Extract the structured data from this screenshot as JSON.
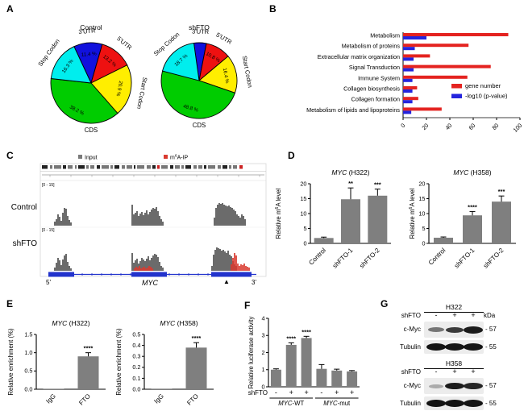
{
  "figure": {
    "bg": "#ffffff"
  },
  "panel_labels": {
    "A": "A",
    "B": "B",
    "C": "C",
    "D": "D",
    "E": "E",
    "F": "F",
    "G": "G"
  },
  "colors": {
    "bar_gray": "#7f7f7f",
    "red": "#e42320",
    "blue": "#2424dd",
    "track_gray": "#6b6b6b",
    "track_red": "#d93a2f",
    "gene_blue": "#2233cc"
  },
  "chart_data": [
    {
      "id": "pie-control",
      "type": "pie",
      "title": "Control",
      "start_angle": -25,
      "slices": [
        {
          "label": "3'UTR",
          "pct": 11.4,
          "color": "#1111dd"
        },
        {
          "label": "5'UTR",
          "pct": 13.2,
          "color": "#ee1111"
        },
        {
          "label": "Start Codon",
          "pct": 20.9,
          "color": "#ffee00"
        },
        {
          "label": "CDS",
          "pct": 38.2,
          "color": "#00cc00"
        },
        {
          "label": "Stop Codon",
          "pct": 16.3,
          "color": "#00eeee"
        }
      ]
    },
    {
      "id": "pie-shfto",
      "type": "pie",
      "title": "shFTO",
      "start_angle": -8,
      "slices": [
        {
          "label": "3'UTR",
          "pct": 5.3,
          "color": "#1111dd"
        },
        {
          "label": "5'UTR",
          "pct": 10.8,
          "color": "#ee1111"
        },
        {
          "label": "Start Codon",
          "pct": 16.4,
          "color": "#ffee00"
        },
        {
          "label": "CDS",
          "pct": 48.8,
          "color": "#00cc00"
        },
        {
          "label": "Stop Codon",
          "pct": 18.7,
          "color": "#00eeee"
        }
      ]
    },
    {
      "id": "pathway-bars",
      "type": "bar",
      "orientation": "horizontal",
      "categories": [
        "Metabolism",
        "Metabolism of proteins",
        "Extracellular matrix organization",
        "Signal Transduction",
        "Immune System",
        "Collagen biosynthesis",
        "Collagen formation",
        "Metabolism of lipids and lipoproteins"
      ],
      "series": [
        {
          "name": "gene number",
          "color": "#e42320",
          "values": [
            90,
            56,
            23,
            75,
            55,
            12,
            13,
            33
          ]
        },
        {
          "name": "-log10 (p-value)",
          "color": "#2424dd",
          "values": [
            20,
            10,
            9,
            9,
            8,
            8,
            8,
            7
          ]
        }
      ],
      "xlim": [
        0,
        100
      ],
      "xticks": [
        "0",
        "20",
        "40",
        "60",
        "80",
        "100"
      ],
      "legend_position": "right"
    },
    {
      "id": "m6a-h322",
      "type": "bar",
      "title_parts": [
        {
          "t": "MYC",
          "italic": true
        },
        {
          "t": " (H322)"
        }
      ],
      "ylabel_parts": [
        {
          "t": "Relative m"
        },
        {
          "t": "6",
          "sup": true
        },
        {
          "t": "A level"
        }
      ],
      "ylim": [
        0,
        20
      ],
      "yticks": [
        "0",
        "5",
        "10",
        "15",
        "20"
      ],
      "categories": [
        "Control",
        "shFTO-1",
        "shFTO-2"
      ],
      "values": [
        1.8,
        14.8,
        16.0
      ],
      "errors": [
        0.3,
        3.8,
        2.2
      ],
      "sig": [
        "",
        "**",
        "***"
      ]
    },
    {
      "id": "m6a-h358",
      "type": "bar",
      "title_parts": [
        {
          "t": "MYC",
          "italic": true
        },
        {
          "t": " (H358)"
        }
      ],
      "ylabel_parts": [
        {
          "t": "Relative m"
        },
        {
          "t": "6",
          "sup": true
        },
        {
          "t": "A level"
        }
      ],
      "ylim": [
        0,
        20
      ],
      "yticks": [
        "0",
        "5",
        "10",
        "15",
        "20"
      ],
      "categories": [
        "Control",
        "shFTO-1",
        "shFTO-2"
      ],
      "values": [
        1.9,
        9.4,
        14.0
      ],
      "errors": [
        0.25,
        1.3,
        1.9
      ],
      "sig": [
        "",
        "****",
        "***"
      ]
    },
    {
      "id": "rip-h322",
      "type": "bar",
      "title_parts": [
        {
          "t": "MYC",
          "italic": true
        },
        {
          "t": " (H322)"
        }
      ],
      "ylabel_parts": [
        {
          "t": "Relative enrichment (%)"
        }
      ],
      "ylim": [
        0,
        1.5
      ],
      "yticks": [
        "0.0",
        "0.5",
        "1.0",
        "1.5"
      ],
      "categories": [
        "IgG",
        "FTO"
      ],
      "values": [
        0.01,
        0.9
      ],
      "errors": [
        0,
        0.1
      ],
      "sig": [
        "",
        "****"
      ]
    },
    {
      "id": "rip-h358",
      "type": "bar",
      "title_parts": [
        {
          "t": "MYC",
          "italic": true
        },
        {
          "t": " (H358)"
        }
      ],
      "ylabel_parts": [
        {
          "t": "Relative enrichment (%)"
        }
      ],
      "ylim": [
        0,
        0.5
      ],
      "yticks": [
        "0.0",
        "0.1",
        "0.2",
        "0.3",
        "0.4",
        "0.5"
      ],
      "categories": [
        "IgG",
        "FTO"
      ],
      "values": [
        0.005,
        0.38
      ],
      "errors": [
        0,
        0.045
      ],
      "sig": [
        "",
        "****"
      ]
    },
    {
      "id": "luciferase",
      "type": "bar",
      "ylabel_parts": [
        {
          "t": "Relative luciferase activity"
        }
      ],
      "ylim": [
        0,
        4
      ],
      "yticks": [
        "0",
        "1",
        "2",
        "3",
        "4"
      ],
      "row_label": "shFTO",
      "x_symbols": [
        "-",
        "+",
        "+",
        "-",
        "+",
        "+"
      ],
      "values": [
        1.0,
        2.45,
        2.85,
        1.05,
        0.95,
        0.9
      ],
      "errors": [
        0.05,
        0.12,
        0.1,
        0.25,
        0.08,
        0.05
      ],
      "sig": [
        "",
        "****",
        "****",
        "",
        "",
        ""
      ],
      "groups": [
        {
          "parts": [
            {
              "t": "MYC",
              "italic": true
            },
            {
              "t": "-WT"
            }
          ],
          "span": [
            0,
            2
          ]
        },
        {
          "parts": [
            {
              "t": "MYC",
              "italic": true
            },
            {
              "t": "-mut"
            }
          ],
          "span": [
            3,
            5
          ]
        }
      ]
    }
  ],
  "genome_browser": {
    "legend": [
      {
        "label_parts": [
          {
            "t": "Input"
          }
        ],
        "color": "#7a7a7a"
      },
      {
        "label_parts": [
          {
            "t": "m"
          },
          {
            "t": "6",
            "sup": true
          },
          {
            "t": "A-IP"
          }
        ],
        "color": "#d93a2f"
      }
    ],
    "tracks": [
      {
        "name": "Control",
        "scale_label": "[0 - 15]",
        "clusters": [
          {
            "x": 67,
            "heights": [
              5,
              8,
              14,
              11,
              6,
              16,
              22,
              21,
              12,
              7,
              4
            ]
          },
          {
            "x": 163,
            "heights": [
              26,
              14,
              16,
              18,
              12,
              15,
              17,
              13,
              16,
              19,
              14,
              17,
              20,
              22,
              21,
              23,
              18,
              12,
              8,
              5
            ]
          },
          {
            "x": 265,
            "heights": [
              10,
              22,
              26,
              28,
              27,
              28,
              26,
              25,
              24,
              25,
              23,
              22,
              20,
              18,
              14,
              12,
              10,
              14,
              12,
              8
            ]
          }
        ]
      },
      {
        "name": "shFTO",
        "scale_label": "[0 - 15]",
        "clusters": [
          {
            "x": 67,
            "heights": [
              4,
              10,
              16,
              13,
              7,
              14,
              19,
              21,
              11,
              6,
              3
            ]
          },
          {
            "x": 163,
            "heights": [
              22,
              10,
              13,
              15,
              9,
              12,
              16,
              14,
              12,
              15,
              18,
              13,
              16,
              19,
              21,
              20,
              17,
              11,
              6,
              4
            ]
          },
          {
            "x": 262,
            "heights": [
              6,
              20,
              26,
              29,
              28,
              27,
              25,
              26,
              24,
              22,
              25,
              20,
              18,
              12,
              8,
              6
            ]
          }
        ],
        "ip_clusters": [
          {
            "x": 166,
            "heights": [
              3,
              5,
              4,
              6,
              3,
              4,
              5,
              3,
              4,
              6,
              5,
              3
            ]
          },
          {
            "x": 286,
            "heights": [
              8,
              16,
              22,
              19,
              9,
              6,
              8,
              7,
              9,
              6,
              5,
              4
            ]
          }
        ]
      }
    ],
    "gene": {
      "name": "MYC",
      "left_end": "5'",
      "right_end": "3'",
      "site_marker": "▲",
      "exons": [
        [
          60,
          32
        ],
        [
          163,
          44
        ],
        [
          262,
          50
        ]
      ],
      "span": [
        60,
        318
      ],
      "site_x": 281
    }
  },
  "panel_g": {
    "kda_header": "kDa",
    "row_label": "shFTO",
    "groups": [
      {
        "cell_line": "H322",
        "lanes": [
          "-",
          "+",
          "+"
        ],
        "show_kda": true,
        "rows": [
          {
            "protein": "c-Myc",
            "kda": "57",
            "bands": [
              {
                "w": 20,
                "h": 6,
                "o": 0.55
              },
              {
                "w": 22,
                "h": 7,
                "o": 0.82
              },
              {
                "w": 24,
                "h": 9,
                "o": 0.97
              }
            ]
          },
          {
            "protein": "Tubulin",
            "kda": "55",
            "bands": [
              {
                "w": 24,
                "h": 9,
                "o": 1
              },
              {
                "w": 24,
                "h": 9,
                "o": 1
              },
              {
                "w": 24,
                "h": 9,
                "o": 1
              }
            ]
          }
        ]
      },
      {
        "cell_line": "H358",
        "lanes": [
          "-",
          "+",
          "+"
        ],
        "show_kda": false,
        "rows": [
          {
            "protein": "c-Myc",
            "kda": "57",
            "bands": [
              {
                "w": 18,
                "h": 5,
                "o": 0.3
              },
              {
                "w": 24,
                "h": 8,
                "o": 0.97
              },
              {
                "w": 24,
                "h": 8,
                "o": 0.92
              }
            ]
          },
          {
            "protein": "Tubulin",
            "kda": "55",
            "bands": [
              {
                "w": 24,
                "h": 9,
                "o": 1
              },
              {
                "w": 24,
                "h": 9,
                "o": 1
              },
              {
                "w": 24,
                "h": 9,
                "o": 1
              }
            ]
          }
        ]
      }
    ]
  }
}
